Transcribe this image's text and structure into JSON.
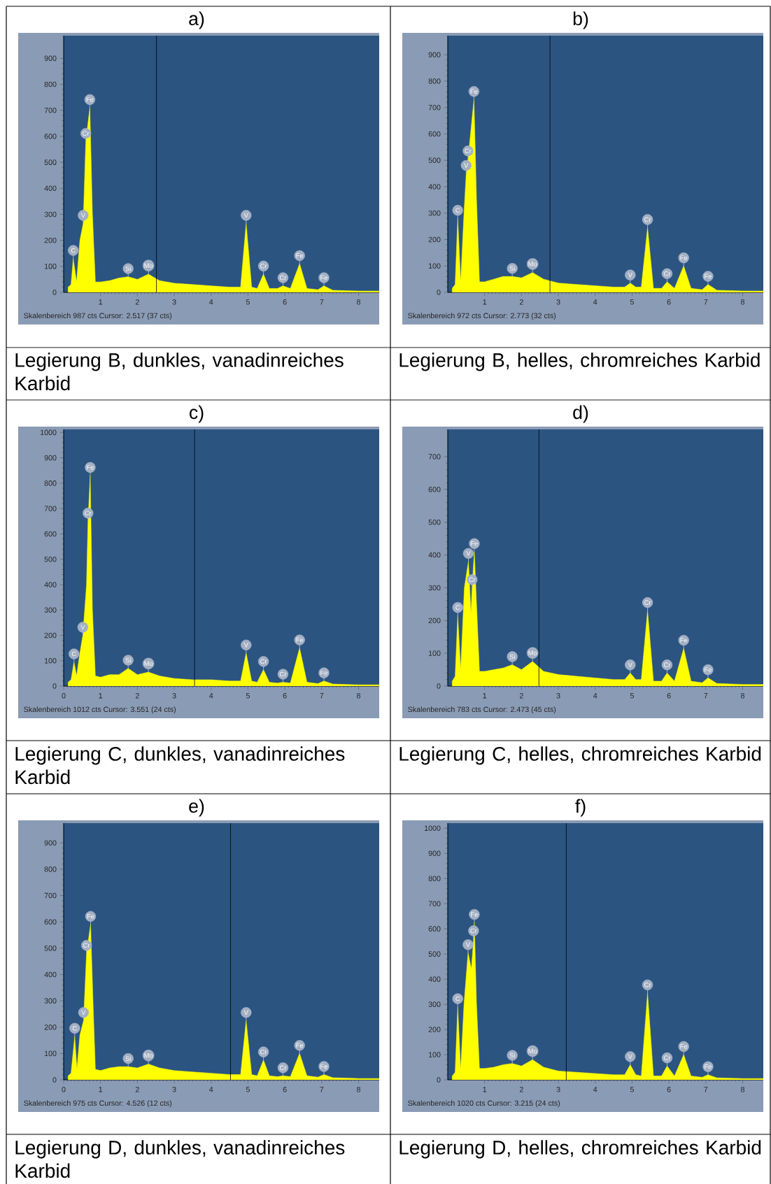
{
  "chart_data": [
    {
      "type": "area",
      "title": "a)",
      "xlim": [
        0,
        8.56
      ],
      "ylim": [
        0,
        987
      ],
      "xticks": [
        1,
        2,
        3,
        4,
        5,
        6,
        7,
        8
      ],
      "yticks": [
        0,
        100,
        200,
        300,
        400,
        500,
        600,
        700,
        800,
        900
      ],
      "color": "#ffff00",
      "x": [
        0.12,
        0.2,
        0.26,
        0.35,
        0.44,
        0.53,
        0.6,
        0.71,
        0.78,
        0.86,
        1.0,
        1.25,
        1.5,
        1.75,
        2.0,
        2.3,
        2.6,
        3.0,
        3.5,
        4.0,
        4.5,
        4.8,
        4.95,
        5.1,
        5.25,
        5.42,
        5.58,
        5.8,
        5.95,
        6.15,
        6.4,
        6.6,
        6.9,
        7.06,
        7.3,
        8.0,
        8.56
      ],
      "values": [
        20,
        30,
        130,
        40,
        200,
        265,
        580,
        710,
        300,
        40,
        40,
        45,
        55,
        60,
        50,
        70,
        45,
        35,
        30,
        25,
        20,
        20,
        265,
        20,
        15,
        70,
        15,
        15,
        25,
        15,
        110,
        15,
        10,
        25,
        8,
        5,
        5
      ],
      "ref_lines": [
        {
          "axis": "x",
          "value": 2.517,
          "color": "#000000"
        }
      ],
      "annotations": [
        {
          "text": "C",
          "x": 0.26,
          "y": 130
        },
        {
          "text": "V",
          "x": 0.53,
          "y": 265
        },
        {
          "text": "Cr",
          "x": 0.6,
          "y": 580
        },
        {
          "text": "Fe",
          "x": 0.71,
          "y": 710
        },
        {
          "text": "Si",
          "x": 1.75,
          "y": 60
        },
        {
          "text": "Mo",
          "x": 2.3,
          "y": 70
        },
        {
          "text": "V",
          "x": 4.95,
          "y": 265
        },
        {
          "text": "Cr",
          "x": 5.42,
          "y": 70
        },
        {
          "text": "Cr",
          "x": 5.95,
          "y": 25
        },
        {
          "text": "Fe",
          "x": 6.4,
          "y": 110
        },
        {
          "text": "Fe",
          "x": 7.06,
          "y": 25
        },
        "Skalenbereich 987 cts Cursor: 2.517  (37 cts)",
        "Legierung B, dunkles, vanadinreiches Karbid"
      ]
    },
    {
      "type": "area",
      "title": "b)",
      "xlim": [
        0,
        8.56
      ],
      "ylim": [
        0,
        972
      ],
      "xticks": [
        1,
        2,
        3,
        4,
        5,
        6,
        7,
        8
      ],
      "yticks": [
        0,
        100,
        200,
        300,
        400,
        500,
        600,
        700,
        800,
        900
      ],
      "color": "#ffff00",
      "x": [
        0.12,
        0.2,
        0.27,
        0.35,
        0.44,
        0.5,
        0.55,
        0.71,
        0.78,
        0.86,
        1.0,
        1.25,
        1.5,
        1.75,
        2.0,
        2.3,
        2.6,
        3.0,
        3.5,
        4.0,
        4.5,
        4.8,
        4.95,
        5.1,
        5.25,
        5.42,
        5.58,
        5.8,
        5.95,
        6.15,
        6.4,
        6.6,
        6.9,
        7.06,
        7.3,
        8.0,
        8.56
      ],
      "values": [
        15,
        30,
        280,
        40,
        300,
        450,
        505,
        730,
        350,
        40,
        40,
        50,
        60,
        60,
        55,
        75,
        50,
        35,
        30,
        25,
        20,
        20,
        35,
        20,
        20,
        245,
        15,
        15,
        40,
        15,
        100,
        15,
        10,
        30,
        8,
        5,
        5
      ],
      "ref_lines": [
        {
          "axis": "x",
          "value": 2.773,
          "color": "#000000"
        }
      ],
      "annotations": [
        {
          "text": "C",
          "x": 0.27,
          "y": 280
        },
        {
          "text": "V",
          "x": 0.5,
          "y": 450
        },
        {
          "text": "Cr",
          "x": 0.55,
          "y": 505
        },
        {
          "text": "Fe",
          "x": 0.71,
          "y": 730
        },
        {
          "text": "Si",
          "x": 1.75,
          "y": 60
        },
        {
          "text": "Mo",
          "x": 2.3,
          "y": 75
        },
        {
          "text": "V",
          "x": 4.95,
          "y": 35
        },
        {
          "text": "Cr",
          "x": 5.42,
          "y": 245
        },
        {
          "text": "Cr",
          "x": 5.95,
          "y": 40
        },
        {
          "text": "Fe",
          "x": 6.4,
          "y": 100
        },
        {
          "text": "Fe",
          "x": 7.06,
          "y": 30
        },
        "Skalenbereich 972 cts Cursor: 2.773  (32 cts)",
        "Legierung B, helles, chromreiches Karbid"
      ]
    },
    {
      "type": "area",
      "title": "c)",
      "xlim": [
        0,
        8.56
      ],
      "ylim": [
        0,
        1012
      ],
      "xticks": [
        0,
        1,
        2,
        3,
        4,
        5,
        6,
        7,
        8
      ],
      "yticks": [
        0,
        100,
        200,
        300,
        400,
        500,
        600,
        700,
        800,
        900,
        1000
      ],
      "color": "#ffff00",
      "x": [
        0.12,
        0.2,
        0.28,
        0.35,
        0.44,
        0.52,
        0.62,
        0.66,
        0.72,
        0.78,
        0.86,
        1.0,
        1.25,
        1.5,
        1.75,
        2.0,
        2.3,
        2.6,
        3.0,
        3.5,
        4.0,
        4.5,
        4.8,
        4.95,
        5.1,
        5.25,
        5.42,
        5.58,
        5.8,
        5.95,
        6.15,
        6.4,
        6.6,
        6.9,
        7.06,
        7.3,
        8.0,
        8.56
      ],
      "values": [
        15,
        25,
        95,
        40,
        130,
        200,
        400,
        650,
        830,
        300,
        40,
        35,
        45,
        45,
        70,
        45,
        55,
        40,
        30,
        25,
        25,
        20,
        20,
        130,
        20,
        15,
        65,
        15,
        12,
        15,
        12,
        150,
        15,
        10,
        20,
        8,
        5,
        5
      ],
      "ref_lines": [
        {
          "axis": "x",
          "value": 3.551,
          "color": "#000000"
        }
      ],
      "annotations": [
        {
          "text": "C",
          "x": 0.28,
          "y": 95
        },
        {
          "text": "V",
          "x": 0.52,
          "y": 200
        },
        {
          "text": "Cr",
          "x": 0.66,
          "y": 650
        },
        {
          "text": "Fe",
          "x": 0.72,
          "y": 830
        },
        {
          "text": "Si",
          "x": 1.75,
          "y": 70
        },
        {
          "text": "Mo",
          "x": 2.3,
          "y": 55
        },
        {
          "text": "V",
          "x": 4.95,
          "y": 130
        },
        {
          "text": "Cr",
          "x": 5.42,
          "y": 65
        },
        {
          "text": "Cr",
          "x": 5.95,
          "y": 15
        },
        {
          "text": "Fe",
          "x": 6.4,
          "y": 150
        },
        {
          "text": "Fe",
          "x": 7.06,
          "y": 20
        },
        "Skalenbereich 1012 cts Cursor: 3.551  (24 cts)",
        "Legierung C, dunkles, vanadinreiches Karbid"
      ]
    },
    {
      "type": "area",
      "title": "d)",
      "xlim": [
        0,
        8.56
      ],
      "ylim": [
        0,
        783
      ],
      "xticks": [
        1,
        2,
        3,
        4,
        5,
        6,
        7,
        8
      ],
      "yticks": [
        0,
        100,
        200,
        300,
        400,
        500,
        600,
        700
      ],
      "color": "#ffff00",
      "x": [
        0.12,
        0.2,
        0.27,
        0.35,
        0.45,
        0.56,
        0.63,
        0.66,
        0.72,
        0.78,
        0.86,
        1.0,
        1.25,
        1.5,
        1.75,
        2.0,
        2.3,
        2.6,
        3.0,
        3.5,
        4.0,
        4.5,
        4.8,
        4.95,
        5.1,
        5.25,
        5.42,
        5.58,
        5.8,
        5.95,
        6.15,
        6.4,
        6.6,
        6.9,
        7.06,
        7.3,
        8.0,
        8.56
      ],
      "values": [
        15,
        30,
        215,
        50,
        300,
        380,
        220,
        300,
        410,
        250,
        45,
        45,
        50,
        55,
        65,
        50,
        75,
        45,
        35,
        30,
        25,
        20,
        20,
        40,
        20,
        20,
        230,
        15,
        15,
        40,
        15,
        115,
        15,
        10,
        25,
        8,
        5,
        5
      ],
      "ref_lines": [
        {
          "axis": "x",
          "value": 2.473,
          "color": "#000000"
        }
      ],
      "annotations": [
        {
          "text": "C",
          "x": 0.27,
          "y": 215
        },
        {
          "text": "V",
          "x": 0.56,
          "y": 380
        },
        {
          "text": "Cr",
          "x": 0.66,
          "y": 300
        },
        {
          "text": "Fe",
          "x": 0.72,
          "y": 410
        },
        {
          "text": "Si",
          "x": 1.75,
          "y": 65
        },
        {
          "text": "Mo",
          "x": 2.3,
          "y": 75
        },
        {
          "text": "V",
          "x": 4.95,
          "y": 40
        },
        {
          "text": "Cr",
          "x": 5.42,
          "y": 230
        },
        {
          "text": "Cr",
          "x": 5.95,
          "y": 40
        },
        {
          "text": "Fe",
          "x": 6.4,
          "y": 115
        },
        {
          "text": "Fe",
          "x": 7.06,
          "y": 25
        },
        "Skalenbereich 783 cts Cursor: 2.473  (45 cts)",
        "Legierung C, helles, chromreiches Karbid"
      ]
    },
    {
      "type": "area",
      "title": "e)",
      "xlim": [
        0,
        8.56
      ],
      "ylim": [
        0,
        975
      ],
      "xticks": [
        0,
        1,
        2,
        3,
        4,
        5,
        6,
        7,
        8
      ],
      "yticks": [
        0,
        100,
        200,
        300,
        400,
        500,
        600,
        700,
        800,
        900
      ],
      "color": "#ffff00",
      "x": [
        0.12,
        0.2,
        0.3,
        0.36,
        0.44,
        0.54,
        0.62,
        0.73,
        0.8,
        0.86,
        1.0,
        1.25,
        1.5,
        1.75,
        2.0,
        2.3,
        2.6,
        3.0,
        3.5,
        4.0,
        4.5,
        4.8,
        4.95,
        5.1,
        5.25,
        5.42,
        5.58,
        5.8,
        5.95,
        6.15,
        6.4,
        6.6,
        6.9,
        7.06,
        7.3,
        8.0,
        8.56
      ],
      "values": [
        15,
        25,
        165,
        40,
        170,
        225,
        480,
        590,
        280,
        40,
        35,
        45,
        50,
        50,
        45,
        60,
        45,
        35,
        30,
        25,
        20,
        20,
        225,
        20,
        15,
        75,
        15,
        12,
        15,
        12,
        100,
        15,
        10,
        20,
        8,
        5,
        5
      ],
      "ref_lines": [
        {
          "axis": "x",
          "value": 4.526,
          "color": "#000000"
        }
      ],
      "annotations": [
        {
          "text": "C",
          "x": 0.3,
          "y": 165
        },
        {
          "text": "V",
          "x": 0.54,
          "y": 225
        },
        {
          "text": "Cr",
          "x": 0.62,
          "y": 480
        },
        {
          "text": "Fe",
          "x": 0.73,
          "y": 590
        },
        {
          "text": "Si",
          "x": 1.75,
          "y": 50
        },
        {
          "text": "Mo",
          "x": 2.3,
          "y": 60
        },
        {
          "text": "V",
          "x": 4.95,
          "y": 225
        },
        {
          "text": "Cr",
          "x": 5.42,
          "y": 75
        },
        {
          "text": "Cr",
          "x": 5.95,
          "y": 15
        },
        {
          "text": "Fe",
          "x": 6.4,
          "y": 100
        },
        {
          "text": "Fe",
          "x": 7.06,
          "y": 20
        },
        "Skalenbereich 975 cts Cursor: 4.526  (12 cts)",
        "Legierung D, dunkles, vanadinreiches Karbid"
      ]
    },
    {
      "type": "area",
      "title": "f)",
      "xlim": [
        0,
        8.56
      ],
      "ylim": [
        0,
        1020
      ],
      "xticks": [
        1,
        2,
        3,
        4,
        5,
        6,
        7,
        8
      ],
      "yticks": [
        0,
        100,
        200,
        300,
        400,
        500,
        600,
        700,
        800,
        900,
        1000
      ],
      "color": "#ffff00",
      "x": [
        0.12,
        0.2,
        0.27,
        0.35,
        0.44,
        0.55,
        0.64,
        0.7,
        0.72,
        0.78,
        0.86,
        1.0,
        1.25,
        1.5,
        1.75,
        2.0,
        2.3,
        2.6,
        3.0,
        3.5,
        4.0,
        4.5,
        4.8,
        4.95,
        5.1,
        5.25,
        5.42,
        5.58,
        5.8,
        5.95,
        6.15,
        6.4,
        6.6,
        6.9,
        7.06,
        7.3,
        8.0,
        8.56
      ],
      "values": [
        15,
        30,
        290,
        40,
        300,
        505,
        440,
        560,
        625,
        300,
        45,
        45,
        50,
        60,
        65,
        55,
        80,
        50,
        35,
        30,
        25,
        20,
        20,
        60,
        20,
        15,
        345,
        15,
        15,
        55,
        15,
        100,
        15,
        10,
        20,
        8,
        5,
        5
      ],
      "ref_lines": [
        {
          "axis": "x",
          "value": 3.215,
          "color": "#000000"
        }
      ],
      "annotations": [
        {
          "text": "C",
          "x": 0.27,
          "y": 290
        },
        {
          "text": "V",
          "x": 0.55,
          "y": 505
        },
        {
          "text": "Cr",
          "x": 0.7,
          "y": 560
        },
        {
          "text": "Fe",
          "x": 0.72,
          "y": 625
        },
        {
          "text": "Si",
          "x": 1.75,
          "y": 65
        },
        {
          "text": "Mo",
          "x": 2.3,
          "y": 80
        },
        {
          "text": "V",
          "x": 4.95,
          "y": 60
        },
        {
          "text": "Cr",
          "x": 5.42,
          "y": 345
        },
        {
          "text": "Cr",
          "x": 5.95,
          "y": 55
        },
        {
          "text": "Fe",
          "x": 6.4,
          "y": 100
        },
        {
          "text": "Fe",
          "x": 7.06,
          "y": 20
        },
        "Skalenbereich 1020 cts Cursor: 3.215  (24 cts)",
        "Legierung D, helles, chromreiches Karbid"
      ]
    }
  ]
}
